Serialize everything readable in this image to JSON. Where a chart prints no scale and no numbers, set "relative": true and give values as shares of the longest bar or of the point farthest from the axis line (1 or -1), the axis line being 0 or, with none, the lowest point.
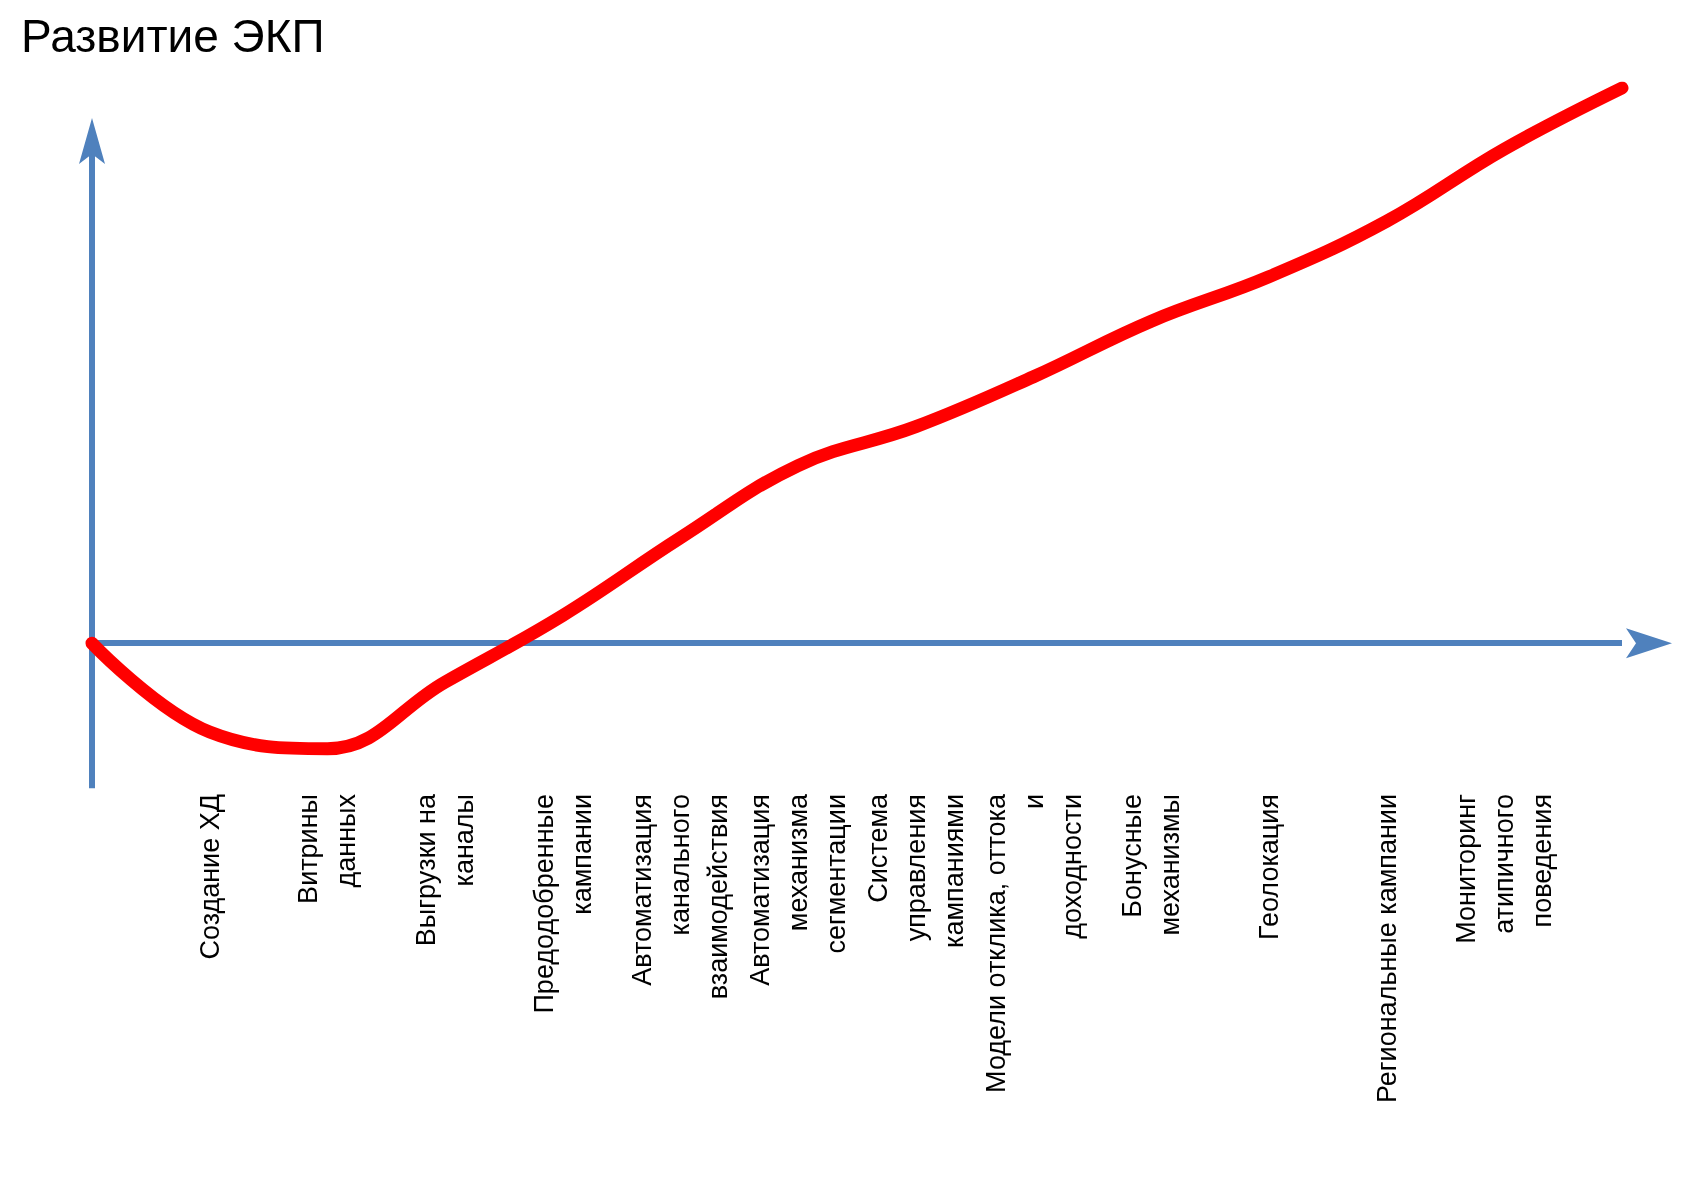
{
  "chart_data": {
    "type": "line",
    "title": "Развитие ЭКП",
    "relative": true,
    "ref_lines": [
      {
        "axis": "y",
        "value": 0,
        "color": "#4f81bd"
      }
    ],
    "line_style": "solid",
    "grid": false,
    "categories": [
      null,
      "Создание ХД",
      "Витрины\nданных",
      "Выгрузки на\nканалы",
      "Предодобренные\nкампании",
      "Автоматизация\nканального\nвзаимодействия",
      "Автоматизация\nмеханизма\nсегментации",
      "Система\nуправления\nкампаниями",
      "Модели отклика, оттока\nи\nдоходности",
      "Бонусные\nмеханизмы",
      "Геолокация",
      "Региональные кампании",
      "Мониторинг\nатипичного\nповедения",
      null
    ],
    "series": [
      {
        "color": "#ff0000",
        "values": [
          0,
          -0.16,
          -0.19,
          -0.07,
          0.05,
          0.19,
          0.32,
          0.39,
          0.48,
          0.58,
          0.66,
          0.76,
          0.89,
          1
        ]
      }
    ]
  }
}
